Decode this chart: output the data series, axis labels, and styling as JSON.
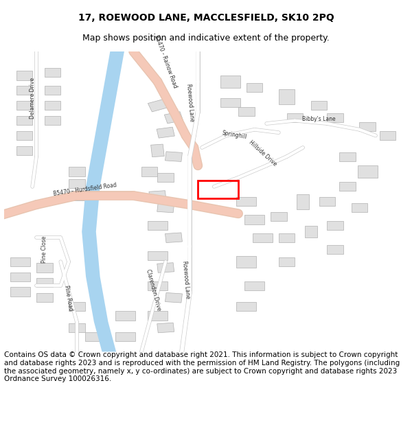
{
  "title": "17, ROEWOOD LANE, MACCLESFIELD, SK10 2PQ",
  "subtitle": "Map shows position and indicative extent of the property.",
  "footer": "Contains OS data © Crown copyright and database right 2021. This information is subject to Crown copyright and database rights 2023 and is reproduced with the permission of HM Land Registry. The polygons (including the associated geometry, namely x, y co-ordinates) are subject to Crown copyright and database rights 2023 Ordnance Survey 100026316.",
  "title_fontsize": 10,
  "subtitle_fontsize": 9,
  "footer_fontsize": 7.5,
  "bg_color": "#ffffff",
  "map_bg": "#f8f8f8",
  "road_major_color": "#f5c9b8",
  "road_major_outline": "#e8c4b0",
  "road_minor_color": "#ffffff",
  "road_outline_color": "#cccccc",
  "river_color": "#a8d4f0",
  "building_color": "#e0e0e0",
  "building_edge_color": "#b0b0b0",
  "plot_color": "#ff0000",
  "road_text_color": "#333333",
  "map_border_color": "#cccccc",
  "figsize": [
    6.0,
    6.25
  ],
  "dpi": 100
}
